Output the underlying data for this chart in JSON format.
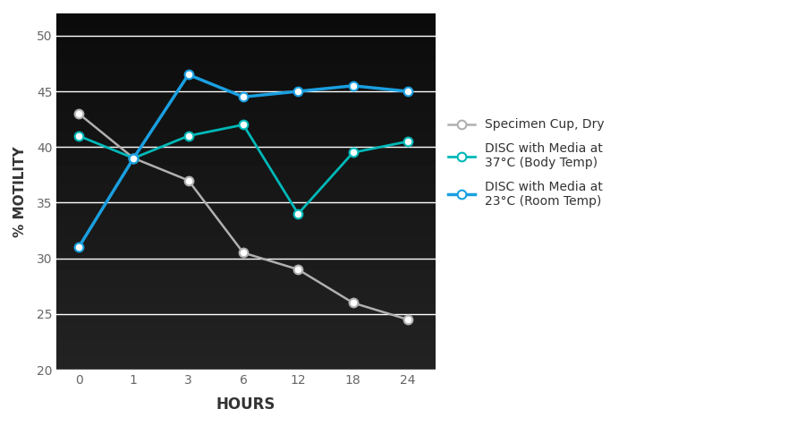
{
  "x_positions": [
    0,
    1,
    2,
    3,
    4,
    5,
    6
  ],
  "x_labels": [
    "0",
    "1",
    "3",
    "6",
    "12",
    "18",
    "24"
  ],
  "series": [
    {
      "label": "Specimen Cup, Dry",
      "values": [
        43,
        39,
        37,
        30.5,
        29,
        26,
        24.5
      ],
      "color": "#b0b0b0",
      "linewidth": 1.8,
      "markersize": 7,
      "markerfacecolor": "#ffffff",
      "markeredgecolor": "#b0b0b0",
      "zorder": 3
    },
    {
      "label": "DISC with Media at\n37°C (Body Temp)",
      "values": [
        41,
        39,
        41,
        42,
        34,
        39.5,
        40.5
      ],
      "color": "#00b8b8",
      "linewidth": 2.0,
      "markersize": 7,
      "markerfacecolor": "#ffffff",
      "markeredgecolor": "#00b8b8",
      "zorder": 4
    },
    {
      "label": "DISC with Media at\n23°C (Room Temp)",
      "values": [
        31,
        39,
        46.5,
        44.5,
        45,
        45.5,
        45
      ],
      "color": "#1a9fe0",
      "linewidth": 2.5,
      "markersize": 7,
      "markerfacecolor": "#ffffff",
      "markeredgecolor": "#1a9fe0",
      "zorder": 5
    }
  ],
  "xlabel": "HOURS",
  "ylabel": "% MOTILITY",
  "ylim": [
    20,
    52
  ],
  "yticks": [
    20,
    25,
    30,
    35,
    40,
    45,
    50
  ],
  "xlim": [
    -0.4,
    6.5
  ],
  "background_color": "#ffffff",
  "plot_bg_color": "#e8e8e8",
  "grid_color": "#ffffff",
  "label_fontsize": 11,
  "tick_fontsize": 10,
  "legend_fontsize": 10
}
